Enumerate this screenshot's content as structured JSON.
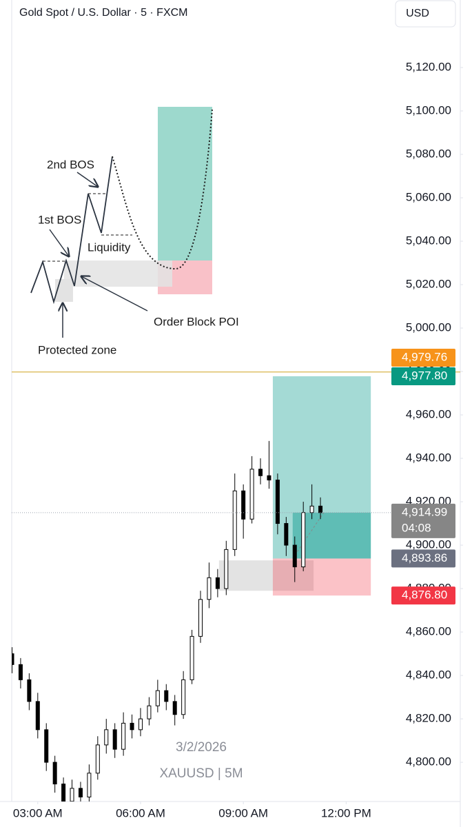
{
  "header": {
    "title": "Gold Spot / U.S. Dollar · 5 · FXCM",
    "currency": "USD"
  },
  "chart_data": {
    "type": "candlestick",
    "x": [
      2.25,
      2.5,
      2.75,
      3,
      3.25,
      3.5,
      3.75,
      4,
      4.25,
      4.5,
      4.75,
      5,
      5.25,
      5.5,
      5.75,
      6,
      6.25,
      6.5,
      6.75,
      7,
      7.25,
      7.5,
      7.75,
      8,
      8.25,
      8.5,
      8.75,
      9,
      9.25,
      9.5,
      9.75,
      10,
      10.25,
      10.5,
      10.75,
      11,
      11.25
    ],
    "open": [
      4850,
      4845,
      4838,
      4828,
      4815,
      4800,
      4790,
      4782,
      4788,
      4784,
      4795,
      4808,
      4815,
      4806,
      4818,
      4815,
      4820,
      4826,
      4833,
      4828,
      4822,
      4838,
      4858,
      4875,
      4885,
      4880,
      4898,
      4925,
      4912,
      4935,
      4932,
      4930,
      4910,
      4900,
      4890,
      4915,
      4918
    ],
    "high": [
      4853,
      4848,
      4841,
      4832,
      4818,
      4803,
      4793,
      4792,
      4791,
      4799,
      4812,
      4820,
      4818,
      4823,
      4822,
      4825,
      4830,
      4838,
      4836,
      4831,
      4842,
      4861,
      4879,
      4892,
      4889,
      4902,
      4933,
      4928,
      4941,
      4940,
      4948,
      4933,
      4913,
      4904,
      4920,
      4928,
      4922
    ],
    "low": [
      4841,
      4834,
      4824,
      4811,
      4796,
      4786,
      4775,
      4778,
      4779,
      4781,
      4792,
      4804,
      4802,
      4803,
      4811,
      4812,
      4817,
      4823,
      4824,
      4817,
      4820,
      4836,
      4855,
      4871,
      4876,
      4877,
      4895,
      4903,
      4910,
      4928,
      4926,
      4905,
      4895,
      4883,
      4888,
      4912,
      4912
    ],
    "close": [
      4845,
      4838,
      4828,
      4815,
      4800,
      4790,
      4782,
      4788,
      4784,
      4795,
      4808,
      4815,
      4806,
      4818,
      4815,
      4820,
      4826,
      4833,
      4828,
      4822,
      4838,
      4858,
      4875,
      4885,
      4880,
      4898,
      4925,
      4912,
      4935,
      4932,
      4930,
      4910,
      4900,
      4890,
      4915,
      4918,
      4914.99
    ],
    "up_color": "#ffffff",
    "down_color": "#000000",
    "xlim": [
      2.24,
      13.32
    ],
    "ylim": [
      4781.3,
      5151.1
    ],
    "xticks": [
      {
        "value": 3,
        "label": "03:00 AM"
      },
      {
        "value": 6,
        "label": "06:00 AM"
      },
      {
        "value": 9,
        "label": "09:00 AM"
      },
      {
        "value": 12,
        "label": "12:00 PM"
      }
    ],
    "yticks": [
      {
        "value": 4800,
        "label": "4,800.00"
      },
      {
        "value": 4820,
        "label": "4,820.00"
      },
      {
        "value": 4840,
        "label": "4,840.00"
      },
      {
        "value": 4860,
        "label": "4,860.00"
      },
      {
        "value": 4880,
        "label": "4,880.00"
      },
      {
        "value": 4900,
        "label": "4,900.00"
      },
      {
        "value": 4920,
        "label": "4,920.00"
      },
      {
        "value": 4940,
        "label": "4,940.00"
      },
      {
        "value": 4960,
        "label": "4,960.00"
      },
      {
        "value": 4980,
        "label": "4,980.00"
      },
      {
        "value": 5000,
        "label": "5,000.00"
      },
      {
        "value": 5020,
        "label": "5,020.00"
      },
      {
        "value": 5040,
        "label": "5,040.00"
      },
      {
        "value": 5060,
        "label": "5,060.00"
      },
      {
        "value": 5080,
        "label": "5,080.00"
      },
      {
        "value": 5100,
        "label": "5,100.00"
      },
      {
        "value": 5120,
        "label": "5,120.00"
      }
    ],
    "price_lines": [
      {
        "value": 4979.76,
        "label": "4,979.76",
        "color": "#f7931a",
        "line": "solid"
      },
      {
        "value": 4977.8,
        "label": "4,977.80",
        "color": "#089981"
      },
      {
        "value": 4914.99,
        "label": "4,914.99",
        "color": "#868686",
        "line": "dotted"
      },
      {
        "value": 4893.86,
        "label": "4,893.86",
        "color": "#6b7080"
      },
      {
        "value": 4876.8,
        "label": "4,876.80",
        "color": "#f23645"
      }
    ],
    "countdown": "04:08",
    "position": {
      "x_start": 9.86,
      "x_end": 12.72,
      "target": 4977.8,
      "entry": 4893.86,
      "stop": 4876.8,
      "current_x": 10.44,
      "current": 4914.99
    },
    "order_block": {
      "x_start": 8.29,
      "x_end": 11.05,
      "top": 4893,
      "bottom": 4879
    },
    "watermark": [
      "3/2/2026",
      "XAUUSD | 5M"
    ]
  },
  "annotations": {
    "labels": [
      "2nd BOS",
      "1st BOS",
      "Liquidity",
      "Order Block POI",
      "Protected zone"
    ]
  }
}
